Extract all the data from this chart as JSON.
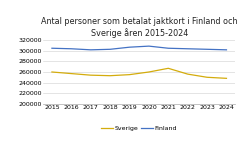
{
  "title": "Antal personer som betalat jaktkort i Finland och\nSverige åren 2015-2024",
  "years": [
    2015,
    2016,
    2017,
    2018,
    2019,
    2020,
    2021,
    2022,
    2023,
    2024
  ],
  "finland": [
    305000,
    304000,
    302000,
    303000,
    307000,
    309000,
    305000,
    304000,
    303000,
    302000
  ],
  "sverige": [
    260000,
    257000,
    254000,
    253000,
    255000,
    260000,
    267000,
    256000,
    250000,
    248000
  ],
  "finland_color": "#4472C4",
  "sverige_color": "#D4AC0D",
  "ylim": [
    200000,
    320000
  ],
  "yticks": [
    200000,
    220000,
    240000,
    260000,
    280000,
    300000,
    320000
  ],
  "background_color": "#ffffff",
  "grid_color": "#d0d0d0",
  "title_fontsize": 5.8,
  "tick_fontsize": 4.5,
  "legend_fontsize": 4.5
}
